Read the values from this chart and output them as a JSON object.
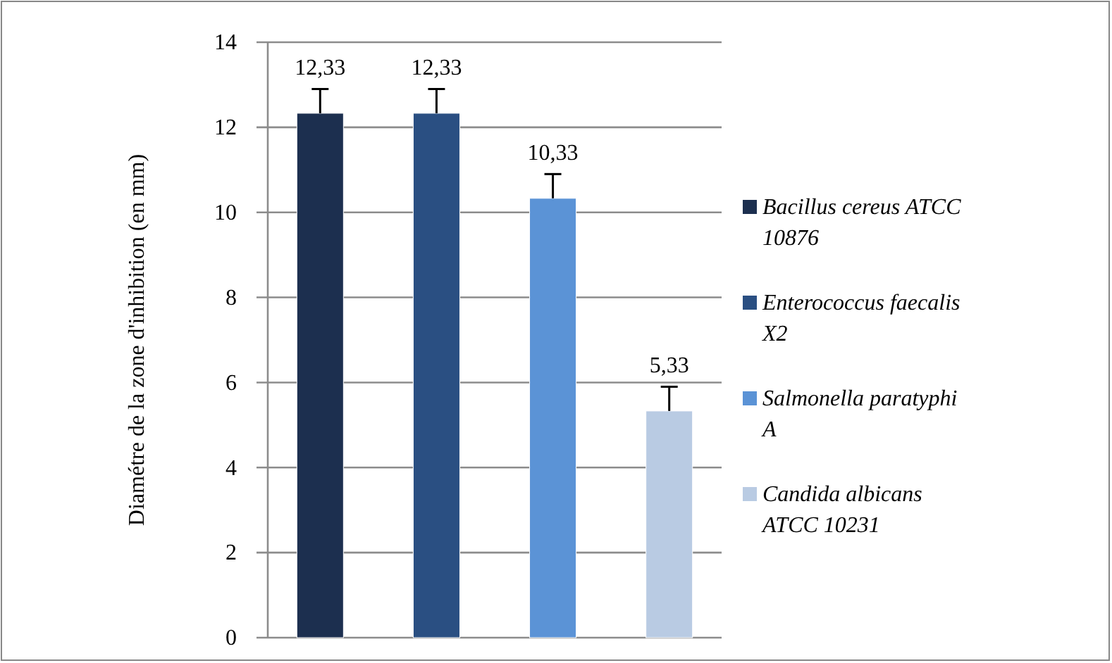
{
  "chart_data": {
    "type": "bar",
    "ylabel": "Diamétre  de la zone d'inhibition (en mm)",
    "categories": [
      null,
      null,
      null,
      null
    ],
    "series": [
      {
        "name": "Bacillus cereus ATCC 10876",
        "color": "#1c2f4f",
        "values": [
          12.33,
          null,
          null,
          null
        ],
        "errors": [
          [
            12.33,
            12.9
          ],
          null,
          null,
          null
        ],
        "value_labels": [
          "12,33",
          null,
          null,
          null
        ]
      },
      {
        "name": "Enterococcus faecalis X2",
        "color": "#2a4f82",
        "values": [
          null,
          12.33,
          null,
          null
        ],
        "errors": [
          null,
          [
            12.33,
            12.9
          ],
          null,
          null
        ],
        "value_labels": [
          null,
          "12,33",
          null,
          null
        ]
      },
      {
        "name": "Salmonella paratyphi A",
        "color": "#5b93d6",
        "values": [
          null,
          null,
          10.33,
          null
        ],
        "errors": [
          null,
          null,
          [
            10.33,
            10.9
          ],
          null
        ],
        "value_labels": [
          null,
          null,
          "10,33",
          null
        ]
      },
      {
        "name": "Candida albicans ATCC 10231",
        "color": "#b9cbe3",
        "values": [
          null,
          null,
          null,
          5.33
        ],
        "errors": [
          null,
          null,
          null,
          [
            5.33,
            5.9
          ]
        ],
        "value_labels": [
          null,
          null,
          null,
          "5,33"
        ]
      }
    ],
    "ylim": [
      0,
      14
    ],
    "yticks": [
      0,
      2,
      4,
      6,
      8,
      10,
      12,
      14
    ],
    "grid": "y",
    "legend": "right"
  }
}
